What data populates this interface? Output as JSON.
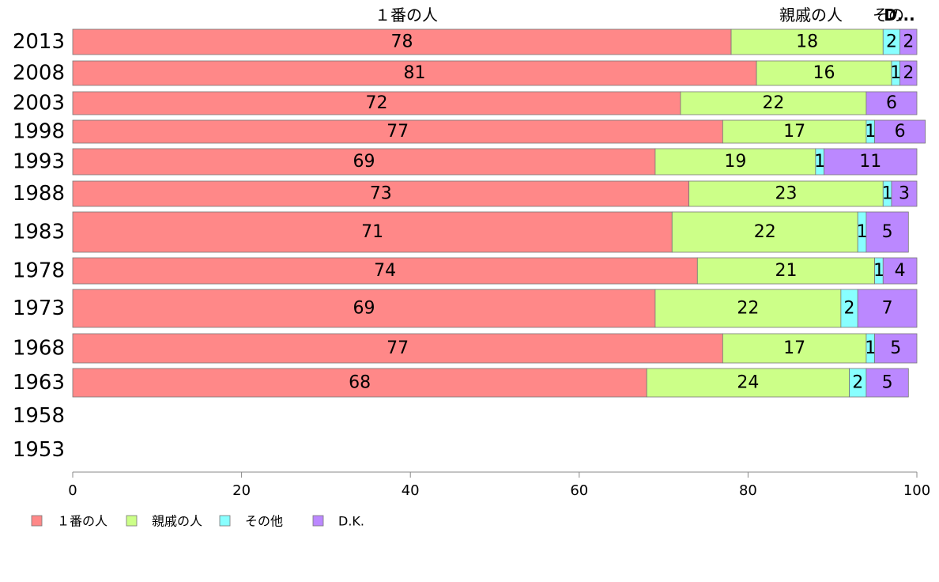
{
  "chart_data": {
    "type": "bar",
    "orientation": "horizontal",
    "stacked": true,
    "title": "",
    "xlabel": "",
    "ylabel": "",
    "xlim": [
      0,
      100
    ],
    "x_ticks": [
      "0",
      "20",
      "40",
      "60",
      "80",
      "100"
    ],
    "categories": [
      "2013",
      "2008",
      "2003",
      "1998",
      "1993",
      "1988",
      "1983",
      "1978",
      "1973",
      "1968",
      "1963",
      "1958",
      "1953"
    ],
    "series": [
      {
        "name": "１番の人",
        "color": "#ff8888",
        "values": [
          78,
          81,
          72,
          77,
          69,
          73,
          71,
          74,
          69,
          77,
          68,
          null,
          null
        ]
      },
      {
        "name": "親戚の人",
        "color": "#ccff88",
        "values": [
          18,
          16,
          22,
          17,
          19,
          23,
          22,
          21,
          22,
          17,
          24,
          null,
          null
        ]
      },
      {
        "name": "その他",
        "color": "#88ffff",
        "values": [
          2,
          1,
          0,
          1,
          1,
          1,
          1,
          1,
          2,
          1,
          2,
          null,
          null
        ]
      },
      {
        "name": "D.K.",
        "color": "#bb88ff",
        "values": [
          2,
          2,
          6,
          6,
          11,
          3,
          5,
          4,
          7,
          5,
          5,
          null,
          null
        ]
      }
    ],
    "top_labels": [
      "１番の人",
      "親戚の人",
      "その",
      "D..."
    ],
    "legend_position": "bottom-left",
    "grid": false
  }
}
